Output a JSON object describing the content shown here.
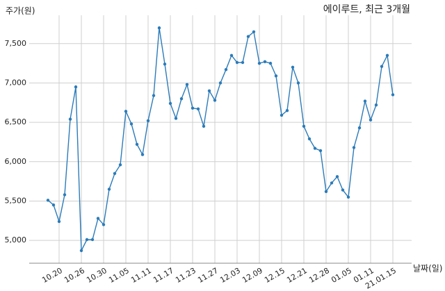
{
  "chart_data": {
    "type": "line",
    "title": "에이루트, 최근 3개월",
    "y_label": "주가(원)",
    "x_label": "날짜(일)",
    "categories": [
      null,
      null,
      "10.20",
      null,
      null,
      null,
      "10.26",
      null,
      null,
      null,
      "10.30",
      null,
      null,
      null,
      "11.05",
      null,
      null,
      null,
      "11.11",
      null,
      null,
      null,
      "11.17",
      null,
      null,
      null,
      "11.23",
      null,
      null,
      null,
      "11.27",
      null,
      null,
      null,
      "12.03",
      null,
      null,
      null,
      "12.09",
      null,
      null,
      null,
      "12.15",
      null,
      null,
      null,
      "12.21",
      null,
      null,
      null,
      "12.28",
      null,
      null,
      null,
      "01.05",
      null,
      null,
      null,
      "01.11",
      null,
      null,
      null,
      "21.01.15"
    ],
    "values": [
      5510,
      5450,
      5240,
      5580,
      6540,
      6950,
      4870,
      5010,
      5010,
      5280,
      5200,
      5650,
      5850,
      5960,
      6640,
      6480,
      6220,
      6090,
      6520,
      6840,
      7700,
      7240,
      6740,
      6550,
      6800,
      6980,
      6680,
      6670,
      6450,
      6900,
      6780,
      7000,
      7170,
      7350,
      7260,
      7260,
      7590,
      7650,
      7250,
      7270,
      7250,
      7090,
      6590,
      6650,
      7200,
      7000,
      6450,
      6290,
      6170,
      6140,
      5620,
      5730,
      5810,
      5640,
      5550,
      6180,
      6430,
      6770,
      6530,
      6720,
      7210,
      7350,
      6850
    ],
    "color": "#2b7bb9",
    "ylim": [
      4710,
      7860
    ],
    "yticks": [
      {
        "value": 5000,
        "label": "5,000"
      },
      {
        "value": 5500,
        "label": "5,500"
      },
      {
        "value": 6000,
        "label": "6,000"
      },
      {
        "value": 6500,
        "label": "6,500"
      },
      {
        "value": 7000,
        "label": "7,000"
      },
      {
        "value": 7500,
        "label": "7,500"
      }
    ],
    "grid": true
  }
}
